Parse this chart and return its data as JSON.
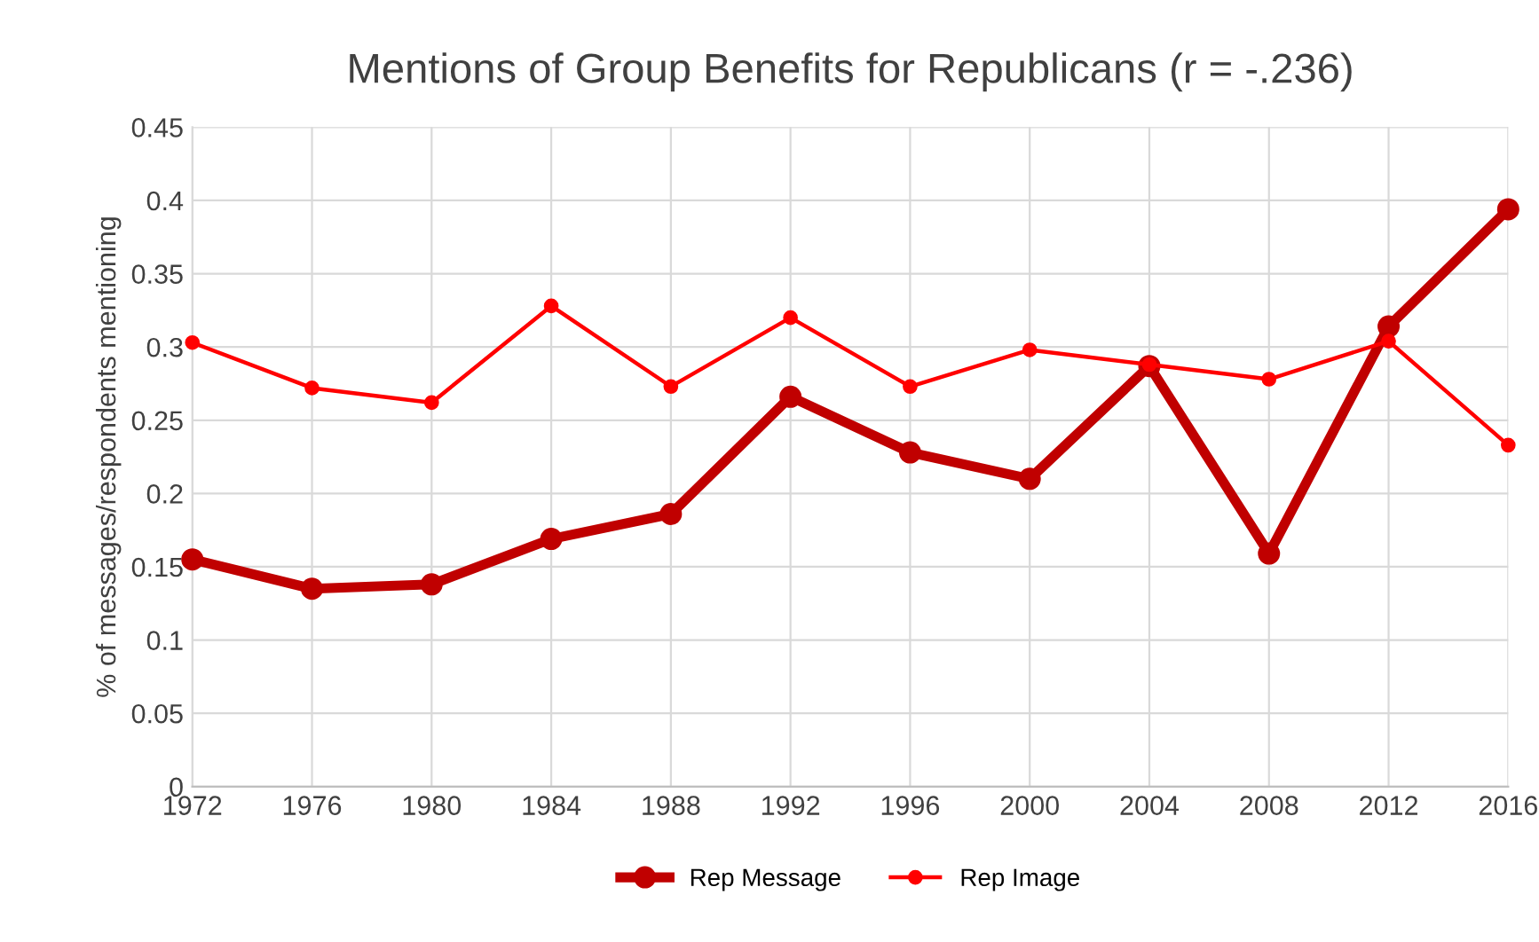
{
  "chart_data": {
    "type": "line",
    "title": "Mentions of Group Benefits for Republicans (r = -.236)",
    "ylabel": "% of messages/respondents mentioning",
    "categories": [
      "1972",
      "1976",
      "1980",
      "1984",
      "1988",
      "1992",
      "1996",
      "2000",
      "2004",
      "2008",
      "2012",
      "2016"
    ],
    "series": [
      {
        "name": "Rep Message",
        "color": "#c00000",
        "values": [
          0.155,
          0.135,
          0.138,
          0.169,
          0.186,
          0.266,
          0.228,
          0.21,
          0.287,
          0.159,
          0.314,
          0.394
        ]
      },
      {
        "name": "Rep Image",
        "color": "#ff0000",
        "values": [
          0.303,
          0.272,
          0.262,
          0.328,
          0.273,
          0.32,
          0.273,
          0.298,
          0.288,
          0.278,
          0.304,
          0.233
        ]
      }
    ],
    "ylim": [
      0,
      0.45
    ],
    "yticks": [
      0,
      0.05,
      0.1,
      0.15,
      0.2,
      0.25,
      0.3,
      0.35,
      0.4,
      0.45
    ],
    "grid": true,
    "legend": "bottom",
    "marker": "circle",
    "line_style": "solid"
  }
}
